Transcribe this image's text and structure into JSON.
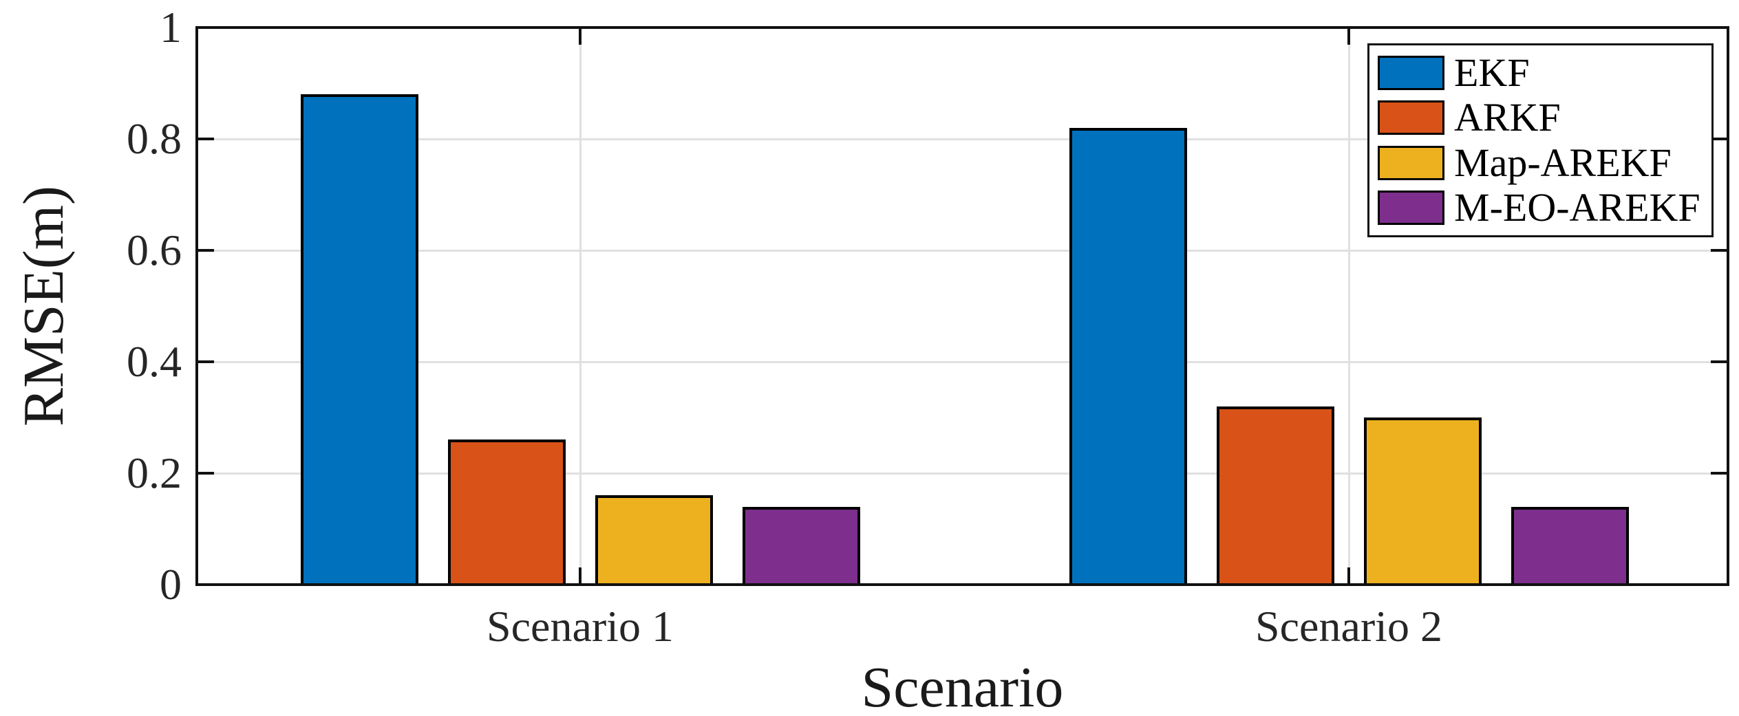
{
  "figure": {
    "background": "#FFFFFF"
  },
  "chart_data": {
    "type": "bar",
    "title": "",
    "xlabel": "Scenario",
    "ylabel": "RMSE(m)",
    "categories": [
      "Scenario 1",
      "Scenario 2"
    ],
    "series": [
      {
        "name": "EKF",
        "color": "#0072BD",
        "values": [
          0.88,
          0.82
        ]
      },
      {
        "name": "ARKF",
        "color": "#D95319",
        "values": [
          0.26,
          0.32
        ]
      },
      {
        "name": "Map-AREKF",
        "color": "#EDB120",
        "values": [
          0.16,
          0.3
        ]
      },
      {
        "name": "M-EO-AREKF",
        "color": "#7E2F8E",
        "values": [
          0.14,
          0.14
        ]
      }
    ],
    "ylim": [
      0,
      1
    ],
    "yticks": [
      0,
      0.2,
      0.4,
      0.6,
      0.8,
      1
    ],
    "ytick_labels": [
      "0",
      "0.2",
      "0.4",
      "0.6",
      "0.8",
      "1"
    ],
    "grid": true,
    "grid_color": "#E0E0E0",
    "axis_color": "#111111",
    "bar_edge_color": "#000000",
    "legend": {
      "position": "top-right",
      "entries": [
        "EKF",
        "ARKF",
        "Map-AREKF",
        "M-EO-AREKF"
      ]
    }
  }
}
